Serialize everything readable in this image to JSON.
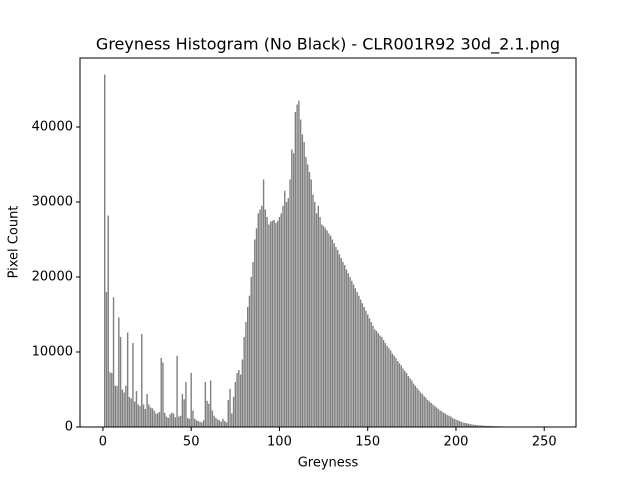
{
  "chart_data": {
    "type": "bar",
    "title": "Greyness Histogram (No Black) - CLR001R92 30d_2.1.png",
    "x_label": "Greyness",
    "y_label": "Pixel Count",
    "color": "#808080",
    "x": [
      1,
      2,
      3,
      4,
      5,
      6,
      7,
      8,
      9,
      10,
      11,
      12,
      13,
      14,
      15,
      16,
      17,
      18,
      19,
      20,
      21,
      22,
      23,
      24,
      25,
      26,
      27,
      28,
      29,
      30,
      31,
      32,
      33,
      34,
      35,
      36,
      37,
      38,
      39,
      40,
      41,
      42,
      43,
      44,
      45,
      46,
      47,
      48,
      49,
      50,
      51,
      52,
      53,
      54,
      55,
      56,
      57,
      58,
      59,
      60,
      61,
      62,
      63,
      64,
      65,
      66,
      67,
      68,
      69,
      70,
      71,
      72,
      73,
      74,
      75,
      76,
      77,
      78,
      79,
      80,
      81,
      82,
      83,
      84,
      85,
      86,
      87,
      88,
      89,
      90,
      91,
      92,
      93,
      94,
      95,
      96,
      97,
      98,
      99,
      100,
      101,
      102,
      103,
      104,
      105,
      106,
      107,
      108,
      109,
      110,
      111,
      112,
      113,
      114,
      115,
      116,
      117,
      118,
      119,
      120,
      121,
      122,
      123,
      124,
      125,
      126,
      127,
      128,
      129,
      130,
      131,
      132,
      133,
      134,
      135,
      136,
      137,
      138,
      139,
      140,
      141,
      142,
      143,
      144,
      145,
      146,
      147,
      148,
      149,
      150,
      151,
      152,
      153,
      154,
      155,
      156,
      157,
      158,
      159,
      160,
      161,
      162,
      163,
      164,
      165,
      166,
      167,
      168,
      169,
      170,
      171,
      172,
      173,
      174,
      175,
      176,
      177,
      178,
      179,
      180,
      181,
      182,
      183,
      184,
      185,
      186,
      187,
      188,
      189,
      190,
      191,
      192,
      193,
      194,
      195,
      196,
      197,
      198,
      199,
      200,
      201,
      202,
      203,
      204,
      205,
      206,
      207,
      208,
      209,
      210,
      211,
      212,
      213,
      214,
      215,
      216,
      217,
      218,
      219,
      220,
      221,
      222,
      223,
      224,
      225,
      226,
      227,
      228,
      229,
      230,
      231,
      232,
      233,
      234,
      235,
      236,
      237,
      238,
      239,
      240,
      241,
      242,
      243,
      244,
      245,
      246,
      247,
      248,
      249,
      250,
      251,
      252,
      253,
      254,
      255
    ],
    "values": [
      47000,
      18000,
      28200,
      7300,
      7200,
      17300,
      5500,
      5500,
      14600,
      12000,
      5000,
      4600,
      5500,
      12600,
      4000,
      3800,
      11200,
      3400,
      4800,
      3000,
      2800,
      12400,
      3000,
      2400,
      4400,
      3000,
      2600,
      2500,
      2200,
      1800,
      1800,
      2000,
      9200,
      8600,
      1900,
      1400,
      1200,
      1700,
      1900,
      1800,
      1300,
      9500,
      1400,
      1500,
      4400,
      3700,
      6000,
      1200,
      1100,
      7200,
      2200,
      1100,
      900,
      800,
      700,
      600,
      900,
      6000,
      3500,
      3100,
      6200,
      2200,
      1500,
      1200,
      1000,
      900,
      700,
      1100,
      800,
      600,
      3600,
      5100,
      1800,
      4000,
      6000,
      7200,
      7600,
      7000,
      9000,
      12000,
      14000,
      16000,
      17500,
      20000,
      22000,
      25000,
      26500,
      28500,
      29000,
      29500,
      33000,
      29000,
      28000,
      27000,
      27400,
      27500,
      27600,
      27200,
      27500,
      28000,
      28500,
      29500,
      31500,
      30000,
      30500,
      33000,
      37000,
      36500,
      42000,
      43000,
      43500,
      41000,
      39000,
      38000,
      36000,
      35000,
      34000,
      33000,
      31000,
      30000,
      28500,
      29500,
      28000,
      27000,
      26800,
      26500,
      26200,
      25800,
      25500,
      25000,
      24500,
      24000,
      23600,
      23000,
      22500,
      22000,
      21600,
      21000,
      20500,
      20000,
      19500,
      19000,
      18500,
      18000,
      17500,
      17000,
      16500,
      16000,
      15500,
      15000,
      14500,
      14000,
      13500,
      13000,
      12800,
      12500,
      12200,
      12000,
      11600,
      11200,
      10800,
      10500,
      10200,
      9800,
      9500,
      9200,
      8800,
      8500,
      8200,
      7800,
      7500,
      7200,
      6800,
      6500,
      6200,
      5800,
      5500,
      5200,
      4900,
      4600,
      4400,
      4100,
      3900,
      3600,
      3400,
      3200,
      3000,
      2800,
      2600,
      2400,
      2200,
      2100,
      1900,
      1800,
      1600,
      1500,
      1400,
      1200,
      1100,
      1000,
      900,
      800,
      700,
      600,
      550,
      500,
      450,
      400,
      350,
      300,
      280,
      260,
      240,
      220,
      200,
      180,
      160,
      150,
      140,
      130,
      120,
      110,
      100,
      90,
      80,
      70,
      60,
      60,
      50,
      50,
      40,
      40,
      40,
      30,
      30,
      30,
      30,
      20,
      20,
      20,
      20,
      20,
      20,
      10,
      10,
      10,
      10,
      10,
      10,
      10,
      10,
      10,
      5,
      5,
      5
    ],
    "xlim": [
      -13,
      268
    ],
    "xticks": [
      0,
      50,
      100,
      150,
      200,
      250
    ],
    "ylim": [
      0,
      49200
    ],
    "yticks": [
      0,
      10000,
      20000,
      30000,
      40000
    ]
  }
}
